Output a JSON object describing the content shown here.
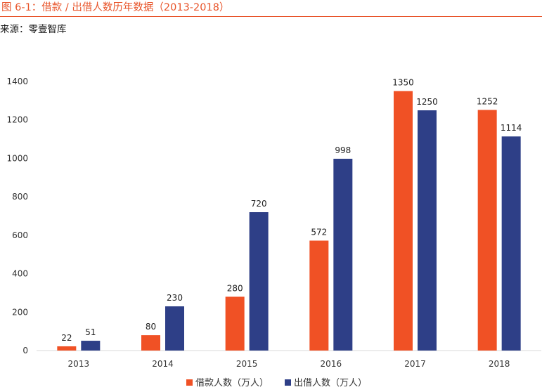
{
  "figure": {
    "title": "图 6-1：借款 / 出借人数历年数据（2013-2018）",
    "source": "来源：零壹智库"
  },
  "colors": {
    "accent": "#e8542a",
    "series_borrow": "#f05125",
    "series_lend": "#2e3f87"
  },
  "chart_data": {
    "type": "bar",
    "title": "",
    "xlabel": "",
    "ylabel": "",
    "categories": [
      "2013",
      "2014",
      "2015",
      "2016",
      "2017",
      "2018"
    ],
    "series": [
      {
        "name": "借款人数（万人）",
        "values": [
          22,
          80,
          280,
          572,
          1350,
          1252
        ]
      },
      {
        "name": "出借人数（万人）",
        "values": [
          51,
          230,
          720,
          998,
          1250,
          1114
        ]
      }
    ],
    "ylim": [
      0,
      1400
    ],
    "yticks": [
      0,
      200,
      400,
      600,
      800,
      1000,
      1200,
      1400
    ],
    "grid": false,
    "legend": "bottom-center"
  }
}
